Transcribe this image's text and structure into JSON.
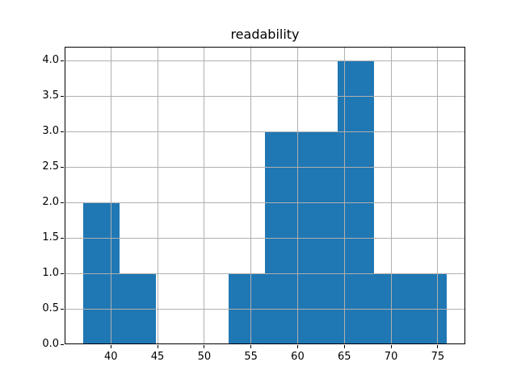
{
  "chart_data": {
    "type": "bar",
    "subtype": "histogram",
    "title": "readability",
    "xlabel": "",
    "ylabel": "",
    "bin_edges": [
      37.0,
      40.9,
      44.8,
      48.7,
      52.6,
      56.5,
      60.4,
      64.3,
      68.2,
      72.1,
      76.0
    ],
    "counts": [
      2,
      1,
      0,
      0,
      1,
      3,
      3,
      4,
      1,
      1
    ],
    "xlim": [
      35.05,
      77.95
    ],
    "ylim": [
      0,
      4.2
    ],
    "xticks": [
      40,
      45,
      50,
      55,
      60,
      65,
      70,
      75
    ],
    "yticks": [
      0.0,
      0.5,
      1.0,
      1.5,
      2.0,
      2.5,
      3.0,
      3.5,
      4.0
    ],
    "xtick_labels": [
      "40",
      "45",
      "50",
      "55",
      "60",
      "65",
      "70",
      "75"
    ],
    "ytick_labels": [
      "0.0",
      "0.5",
      "1.0",
      "1.5",
      "2.0",
      "2.5",
      "3.0",
      "3.5",
      "4.0"
    ],
    "grid": true,
    "grid_on_top_of_bars": true,
    "legend": "none",
    "bar_color": "#1f77b4",
    "grid_color": "#b0b0b0",
    "spine_color": "#000000",
    "text_color": "#000000",
    "background_color": "#ffffff"
  }
}
